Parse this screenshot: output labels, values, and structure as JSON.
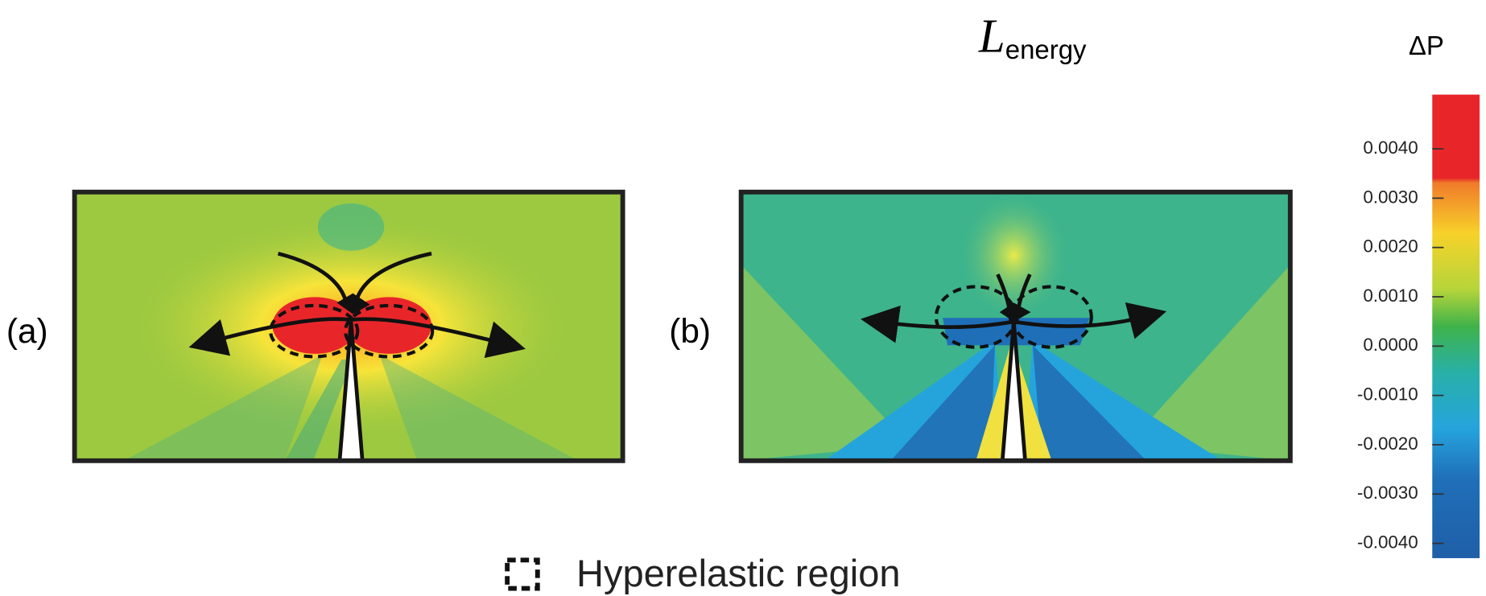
{
  "title": {
    "main": "L",
    "subscript": "energy"
  },
  "panels": [
    {
      "label": "(a)"
    },
    {
      "label": "(b)"
    }
  ],
  "legend": {
    "text": "Hyperelastic region"
  },
  "colorbar": {
    "label": "ΔP",
    "lim": [
      -0.0043,
      0.0051
    ],
    "ticks": [
      {
        "value": 0.004,
        "label": "0.0040"
      },
      {
        "value": 0.003,
        "label": "0.0030"
      },
      {
        "value": 0.002,
        "label": "0.0020"
      },
      {
        "value": 0.001,
        "label": "0.0010"
      },
      {
        "value": 0,
        "label": "0.0000"
      },
      {
        "value": -0.001,
        "label": "-0.0010"
      },
      {
        "value": -0.002,
        "label": "-0.0020"
      },
      {
        "value": -0.003,
        "label": "-0.0030"
      },
      {
        "value": -0.004,
        "label": "-0.0040"
      }
    ]
  }
}
